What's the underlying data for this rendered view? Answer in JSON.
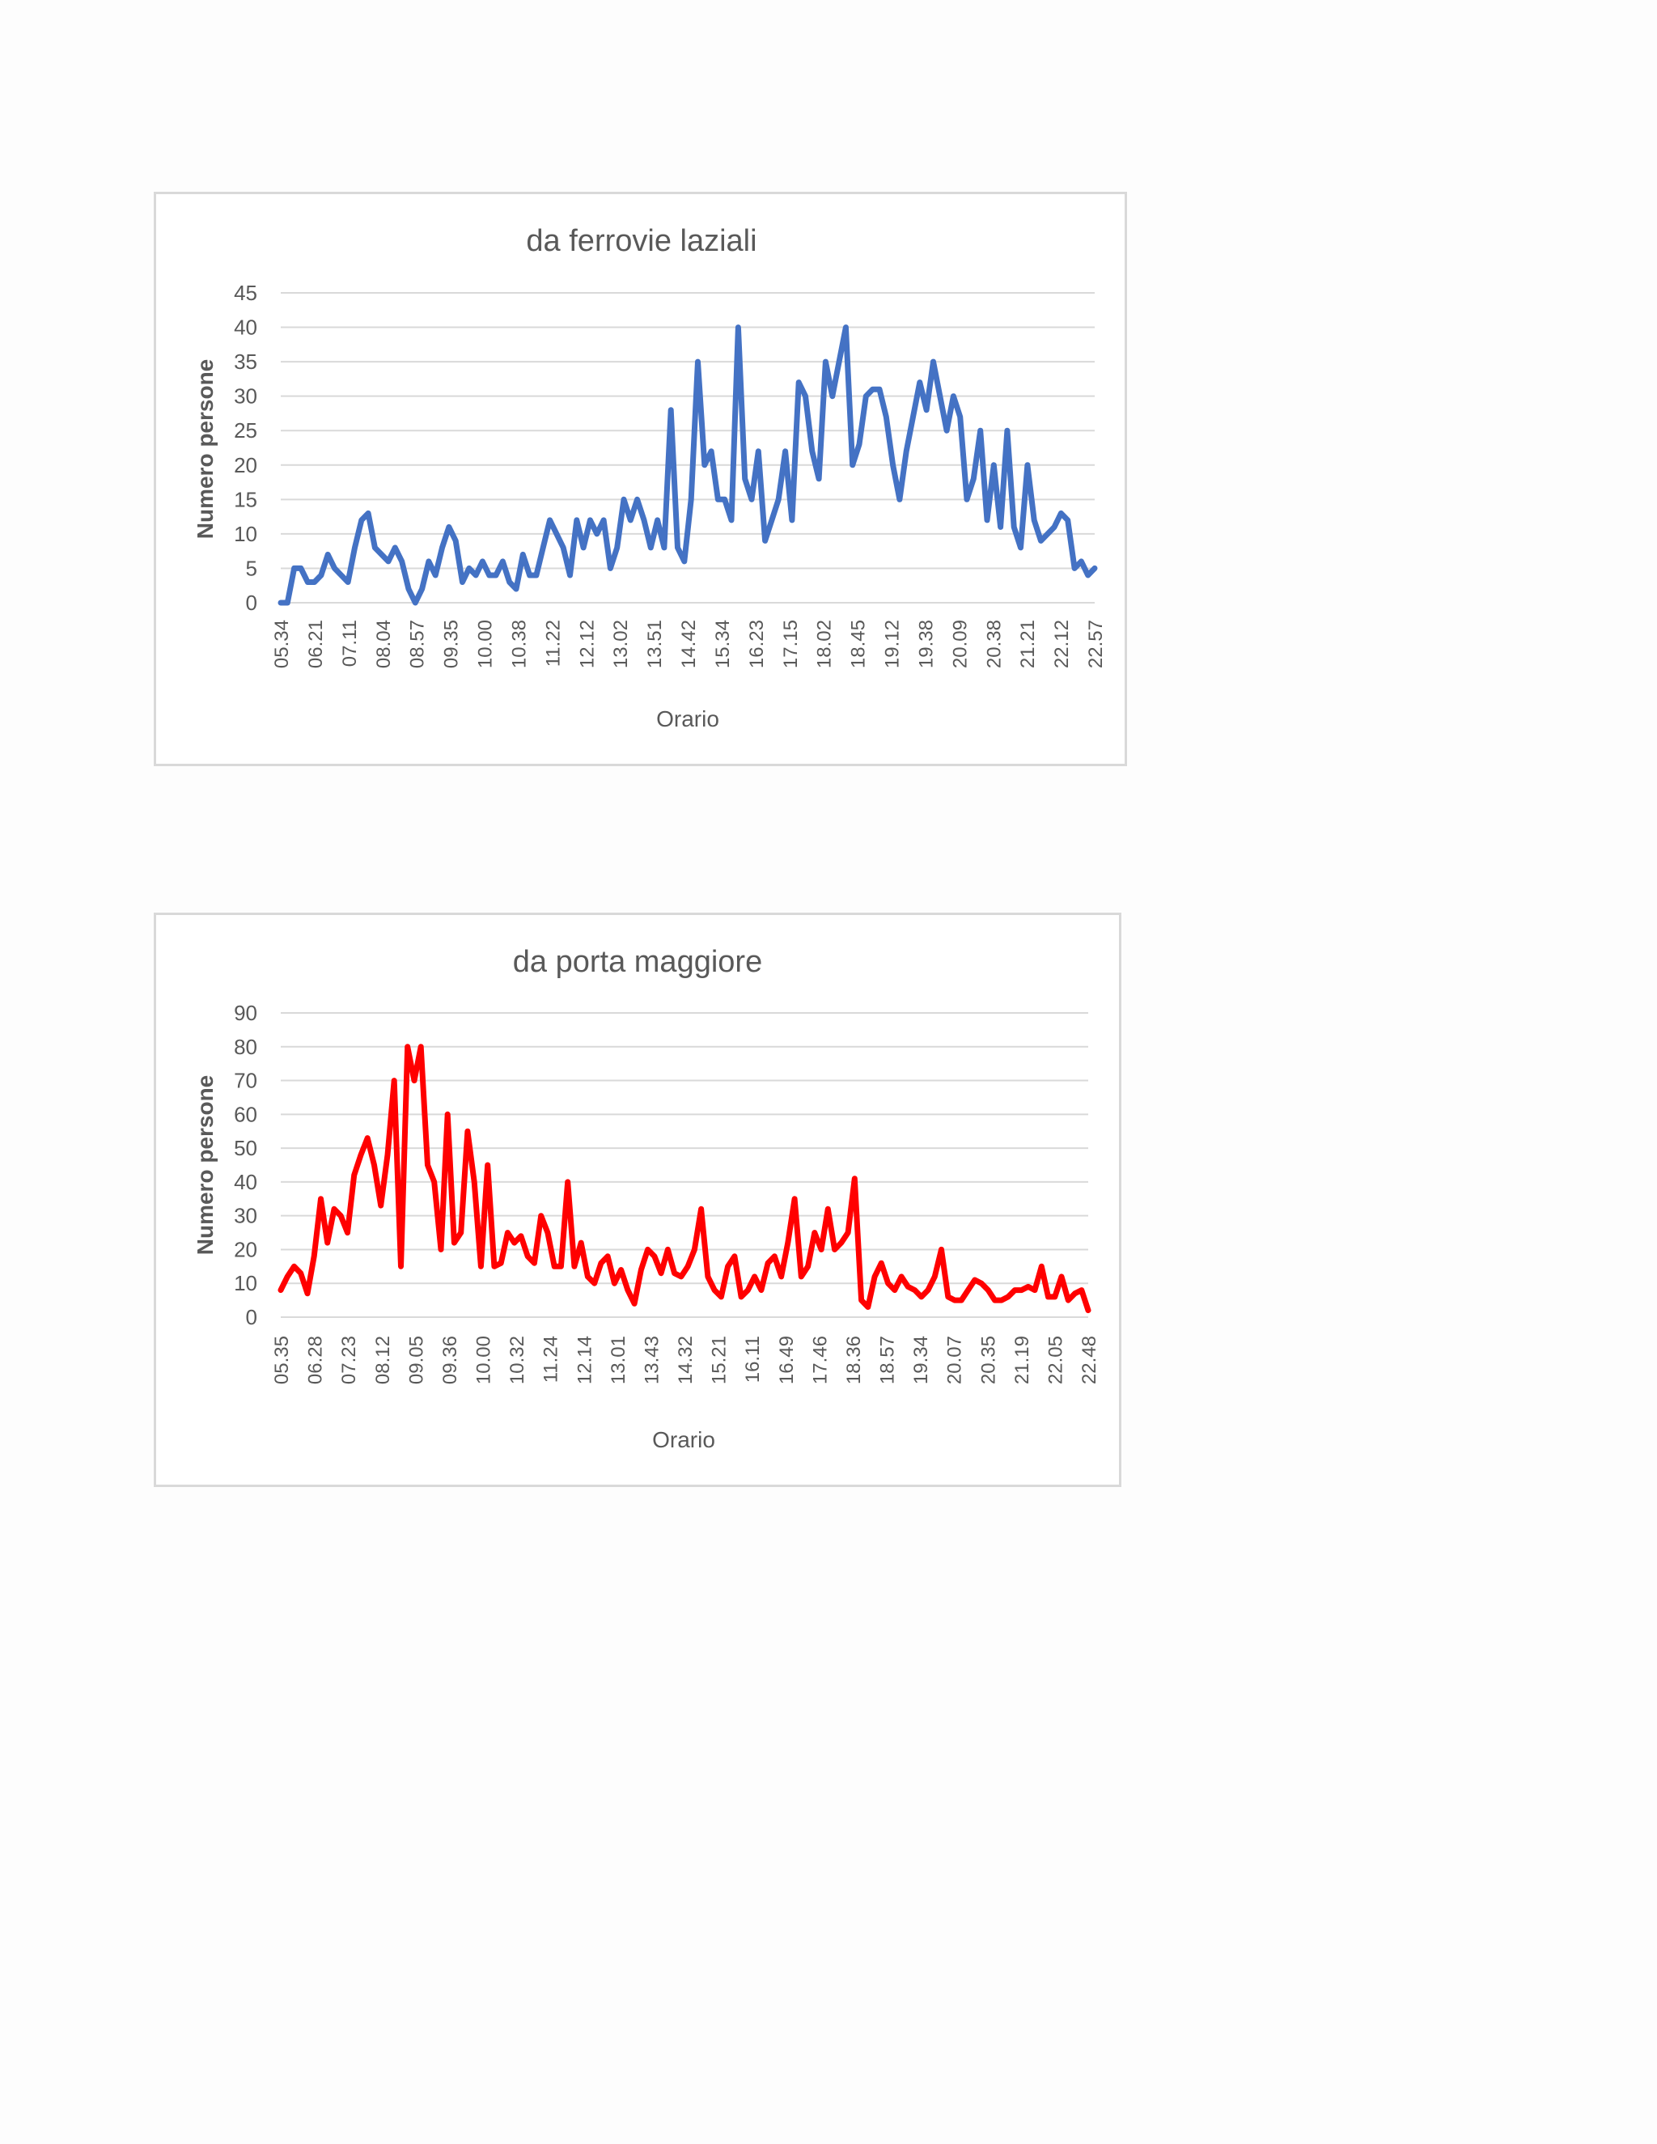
{
  "chart_data": [
    {
      "type": "line",
      "title": "da ferrovie laziali",
      "xlabel": "Orario",
      "ylabel": "Numero persone",
      "ylim": [
        0,
        45
      ],
      "yticks": [
        "0",
        "5",
        "10",
        "15",
        "20",
        "25",
        "30",
        "35",
        "40",
        "45"
      ],
      "tick_labels": [
        "05.34",
        "06.21",
        "07.11",
        "08.04",
        "08.57",
        "09.35",
        "10.00",
        "10.38",
        "11.22",
        "12.12",
        "13.02",
        "13.51",
        "14.42",
        "15.34",
        "16.23",
        "17.15",
        "18.02",
        "18.45",
        "19.12",
        "19.38",
        "20.09",
        "20.38",
        "21.21",
        "22.12",
        "22.57"
      ],
      "grid": true,
      "legend": "none",
      "color": "#4472c4",
      "series": [
        {
          "values": [
            0,
            0,
            5,
            5,
            3,
            3,
            4,
            7,
            5,
            4,
            3,
            8,
            12,
            13,
            8,
            7,
            6,
            8,
            6,
            2,
            0,
            2,
            6,
            4,
            8,
            11,
            9,
            3,
            5,
            4,
            6,
            4,
            4,
            6,
            3,
            2,
            7,
            4,
            4,
            8,
            12,
            10,
            8,
            4,
            12,
            8,
            12,
            10,
            12,
            5,
            8,
            15,
            12,
            15,
            12,
            8,
            12,
            8,
            28,
            8,
            6,
            15,
            35,
            20,
            22,
            15,
            15,
            12,
            40,
            18,
            15,
            22,
            9,
            12,
            15,
            22,
            12,
            32,
            30,
            22,
            18,
            35,
            30,
            35,
            40,
            20,
            23,
            30,
            31,
            31,
            27,
            20,
            15,
            22,
            27,
            32,
            28,
            35,
            30,
            25,
            30,
            27,
            15,
            18,
            25,
            12,
            20,
            11,
            25,
            11,
            8,
            20,
            12,
            9,
            10,
            11,
            13,
            12,
            5,
            6,
            4,
            5
          ]
        }
      ]
    },
    {
      "type": "line",
      "title": "da porta maggiore",
      "xlabel": "Orario",
      "ylabel": "Numero persone",
      "ylim": [
        0,
        90
      ],
      "yticks": [
        "0",
        "10",
        "20",
        "30",
        "40",
        "50",
        "60",
        "70",
        "80",
        "90"
      ],
      "tick_labels": [
        "05.35",
        "06.28",
        "07.23",
        "08.12",
        "09.05",
        "09.36",
        "10.00",
        "10.32",
        "11.24",
        "12.14",
        "13.01",
        "13.43",
        "14.32",
        "15.21",
        "16.11",
        "16.49",
        "17.46",
        "18.36",
        "18.57",
        "19.34",
        "20.07",
        "20.35",
        "21.19",
        "22.05",
        "22.48"
      ],
      "grid": true,
      "legend": "none",
      "color": "#ff0000",
      "series": [
        {
          "values": [
            8,
            12,
            15,
            13,
            7,
            18,
            35,
            22,
            32,
            30,
            25,
            42,
            48,
            53,
            45,
            33,
            48,
            70,
            15,
            80,
            70,
            80,
            45,
            40,
            20,
            60,
            22,
            25,
            55,
            40,
            15,
            45,
            15,
            16,
            25,
            22,
            24,
            18,
            16,
            30,
            25,
            15,
            15,
            40,
            15,
            22,
            12,
            10,
            16,
            18,
            10,
            14,
            8,
            4,
            14,
            20,
            18,
            13,
            20,
            13,
            12,
            15,
            20,
            32,
            12,
            8,
            6,
            15,
            18,
            6,
            8,
            12,
            8,
            16,
            18,
            12,
            22,
            35,
            12,
            15,
            25,
            20,
            32,
            20,
            22,
            25,
            41,
            5,
            3,
            12,
            16,
            10,
            8,
            12,
            9,
            8,
            6,
            8,
            12,
            20,
            6,
            5,
            5,
            8,
            11,
            10,
            8,
            5,
            5,
            6,
            8,
            8,
            9,
            8,
            15,
            6,
            6,
            12,
            5,
            7,
            8,
            2
          ]
        }
      ]
    }
  ]
}
